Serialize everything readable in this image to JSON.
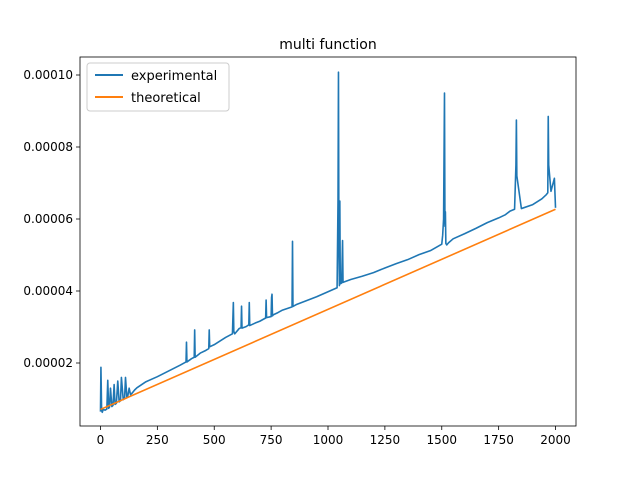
{
  "chart_data": {
    "type": "line",
    "title": "multi function",
    "xlabel": "",
    "ylabel": "",
    "xlim": [
      -90,
      2090
    ],
    "ylim": [
      2.5e-06,
      0.000105
    ],
    "xticks": [
      0,
      250,
      500,
      750,
      1000,
      1250,
      1500,
      1750,
      2000
    ],
    "xtick_labels": [
      "0",
      "250",
      "500",
      "750",
      "1000",
      "1250",
      "1500",
      "1750",
      "2000"
    ],
    "yticks": [
      2e-05,
      4e-05,
      6e-05,
      8e-05,
      0.0001
    ],
    "ytick_labels": [
      "0.00002",
      "0.00004",
      "0.00006",
      "0.00008",
      "0.00010"
    ],
    "grid": false,
    "legend_position": "upper-left",
    "series": [
      {
        "name": "experimental",
        "color": "#1f77b4",
        "x": [
          0,
          2,
          5,
          8,
          12,
          20,
          28,
          32,
          36,
          40,
          44,
          50,
          55,
          60,
          64,
          70,
          76,
          82,
          88,
          92,
          100,
          106,
          110,
          116,
          120,
          126,
          132,
          140,
          150,
          160,
          200,
          250,
          300,
          350,
          376,
          378,
          380,
          400,
          412,
          414,
          416,
          440,
          460,
          476,
          478,
          480,
          500,
          550,
          580,
          584,
          586,
          590,
          610,
          618,
          620,
          622,
          640,
          652,
          654,
          656,
          680,
          700,
          726,
          728,
          730,
          750,
          752,
          754,
          756,
          760,
          780,
          800,
          842,
          844,
          846,
          860,
          900,
          950,
          1000,
          1040,
          1044,
          1046,
          1048,
          1050,
          1052,
          1054,
          1060,
          1064,
          1066,
          1070,
          1100,
          1150,
          1200,
          1250,
          1300,
          1350,
          1400,
          1450,
          1500,
          1504,
          1508,
          1512,
          1514,
          1516,
          1518,
          1522,
          1530,
          1550,
          1600,
          1650,
          1700,
          1750,
          1780,
          1800,
          1820,
          1826,
          1828,
          1830,
          1850,
          1900,
          1940,
          1960,
          1966,
          1968,
          1970,
          1980,
          1995,
          2000
        ],
        "y": [
          6.5e-06,
          1.88e-05,
          6.8e-06,
          6.3e-06,
          7.1e-06,
          6.9e-06,
          7.2e-06,
          1.52e-05,
          7.4e-06,
          7.8e-06,
          1.3e-05,
          7.9e-06,
          8.2e-06,
          1.4e-05,
          8.5e-06,
          8.8e-06,
          1.5e-05,
          9.2e-06,
          9.5e-06,
          1.6e-05,
          9.8e-06,
          1.02e-05,
          1.6e-05,
          1.04e-05,
          1.08e-05,
          1.3e-05,
          1.12e-05,
          1.17e-05,
          1.25e-05,
          1.31e-05,
          1.48e-05,
          1.62e-05,
          1.78e-05,
          1.94e-05,
          2.03e-05,
          2.58e-05,
          2.03e-05,
          2.12e-05,
          2.16e-05,
          2.92e-05,
          2.16e-05,
          2.28e-05,
          2.34e-05,
          2.4e-05,
          2.92e-05,
          2.45e-05,
          2.51e-05,
          2.71e-05,
          2.81e-05,
          3.68e-05,
          2.88e-05,
          2.81e-05,
          2.96e-05,
          2.98e-05,
          3.58e-05,
          2.97e-05,
          3.01e-05,
          3.06e-05,
          3.68e-05,
          3.04e-05,
          3.11e-05,
          3.16e-05,
          3.25e-05,
          3.75e-05,
          3.26e-05,
          3.29e-05,
          3.82e-05,
          3.91e-05,
          3.31e-05,
          3.34e-05,
          3.4e-05,
          3.47e-05,
          3.56e-05,
          5.38e-05,
          3.57e-05,
          3.62e-05,
          3.72e-05,
          3.84e-05,
          3.98e-05,
          4.09e-05,
          6.5e-05,
          0.0001008,
          5.2e-05,
          4.15e-05,
          6.5e-05,
          4.2e-05,
          4.22e-05,
          5.4e-05,
          4.24e-05,
          4.25e-05,
          4.32e-05,
          4.41e-05,
          4.51e-05,
          4.64e-05,
          4.76e-05,
          4.87e-05,
          5.01e-05,
          5.12e-05,
          5.3e-05,
          5.55e-05,
          6e-05,
          9.5e-05,
          5.8e-05,
          6.2e-05,
          5.32e-05,
          5.28e-05,
          5.34e-05,
          5.45e-05,
          5.59e-05,
          5.74e-05,
          5.9e-05,
          6.03e-05,
          6.12e-05,
          6.22e-05,
          6.27e-05,
          7.5e-05,
          8.75e-05,
          7.2e-05,
          6.29e-05,
          6.4e-05,
          6.56e-05,
          6.68e-05,
          6.73e-05,
          8.85e-05,
          7.5e-05,
          6.77e-05,
          7.13e-05,
          6.31e-05
        ]
      },
      {
        "name": "theoretical",
        "color": "#ff7f0e",
        "x": [
          0,
          2000
        ],
        "y": [
          7.1e-06,
          6.27e-05
        ]
      }
    ]
  }
}
